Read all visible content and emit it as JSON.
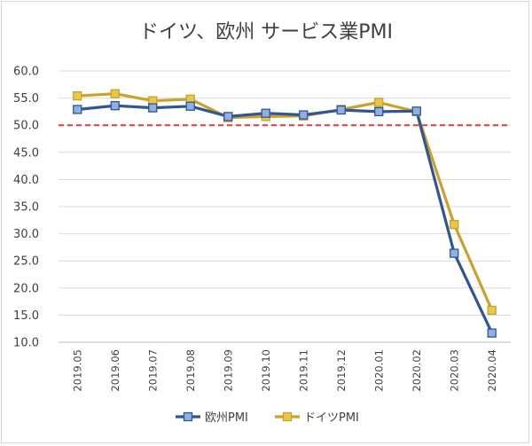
{
  "chart_data": {
    "type": "line",
    "title": "ドイツ、欧州 サービス業PMI",
    "xlabel": "",
    "ylabel": "",
    "categories": [
      "2019.05",
      "2019.06",
      "2019.07",
      "2019.08",
      "2019.09",
      "2019.10",
      "2019.11",
      "2019.12",
      "2020.01",
      "2020.02",
      "2020.03",
      "2020.04"
    ],
    "ylim": [
      10,
      60
    ],
    "yticks": [
      "10.0",
      "15.0",
      "20.0",
      "25.0",
      "30.0",
      "35.0",
      "40.0",
      "45.0",
      "50.0",
      "55.0",
      "60.0"
    ],
    "grid": true,
    "legend_position": "bottom",
    "reference_line": {
      "value": 50,
      "color": "#e03c3c",
      "style": "dashed"
    },
    "series": [
      {
        "name": "欧州PMI",
        "color": "#2f5597",
        "marker_fill": "#8fb0e0",
        "values": [
          52.9,
          53.6,
          53.2,
          53.5,
          51.6,
          52.2,
          51.9,
          52.8,
          52.5,
          52.6,
          26.4,
          11.7
        ]
      },
      {
        "name": "ドイツPMI",
        "color": "#c9a227",
        "marker_fill": "#e6c84a",
        "values": [
          55.4,
          55.8,
          54.5,
          54.8,
          51.4,
          51.6,
          51.7,
          52.9,
          54.2,
          52.5,
          31.7,
          15.9
        ]
      }
    ]
  }
}
